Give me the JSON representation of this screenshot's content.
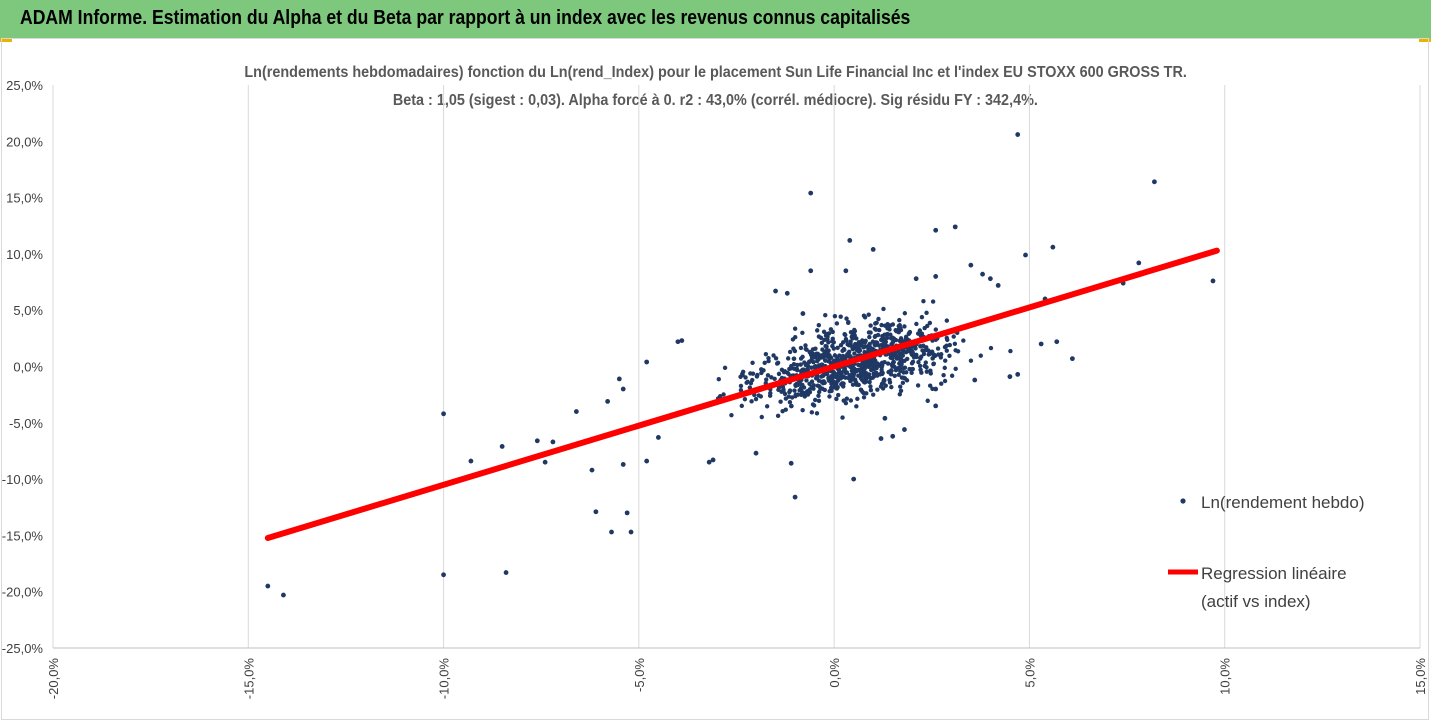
{
  "banner": {
    "title": "ADAM Informe. Estimation du Alpha et du Beta par rapport à un index avec les revenus connus capitalisés",
    "background": "#7dc87d",
    "corner_color": "#e8b400"
  },
  "chart_data": {
    "type": "scatter",
    "title": "Ln(rendements hebdomadaires) fonction du Ln(rend_Index) pour le placement Sun Life Financial Inc et l'index EU STOXX 600 GROSS TR.",
    "subtitle": "Beta : 1,05 (sigest : 0,03). Alpha forcé à 0. r2 : 43,0% (corrél. médiocre). Sig résidu FY : 342,4%.",
    "xlabel": "",
    "ylabel": "",
    "xlim": [
      -0.2,
      0.15
    ],
    "ylim": [
      -0.25,
      0.25
    ],
    "x_ticks": [
      -0.2,
      -0.15,
      -0.1,
      -0.05,
      0.0,
      0.05,
      0.1,
      0.15
    ],
    "x_tick_labels": [
      "-20,0%",
      "-15,0%",
      "-10,0%",
      "-5,0%",
      "0,0%",
      "5,0%",
      "10,0%",
      "15,0%"
    ],
    "y_ticks": [
      0.25,
      0.2,
      0.15,
      0.1,
      0.05,
      0.0,
      -0.05,
      -0.1,
      -0.15,
      -0.2,
      -0.25
    ],
    "y_tick_labels": [
      "25,0%",
      "20,0%",
      "15,0%",
      "10,0%",
      "5,0%",
      "0,0%",
      "-5,0%",
      "-10,0%",
      "-15,0%",
      "-20,0%",
      "-25,0%"
    ],
    "grid": "vertical",
    "legend_position": "right",
    "series": [
      {
        "name": "Ln(rendement hebdo)",
        "kind": "scatter",
        "color": "#1f3864",
        "points": [
          [
            -0.145,
            -0.195
          ],
          [
            -0.141,
            -0.203
          ],
          [
            -0.1,
            -0.185
          ],
          [
            -0.084,
            -0.183
          ],
          [
            -0.1,
            -0.042
          ],
          [
            -0.093,
            -0.084
          ],
          [
            -0.085,
            -0.071
          ],
          [
            -0.076,
            -0.066
          ],
          [
            -0.074,
            -0.085
          ],
          [
            -0.072,
            -0.067
          ],
          [
            -0.066,
            -0.04
          ],
          [
            -0.062,
            -0.092
          ],
          [
            -0.061,
            -0.129
          ],
          [
            -0.058,
            -0.031
          ],
          [
            -0.057,
            -0.147
          ],
          [
            -0.055,
            -0.011
          ],
          [
            -0.054,
            -0.02
          ],
          [
            -0.054,
            -0.087
          ],
          [
            -0.053,
            -0.13
          ],
          [
            -0.052,
            -0.147
          ],
          [
            -0.048,
            0.004
          ],
          [
            -0.048,
            -0.084
          ],
          [
            -0.045,
            -0.063
          ],
          [
            -0.04,
            0.022
          ],
          [
            -0.039,
            0.023
          ],
          [
            -0.032,
            -0.085
          ],
          [
            -0.031,
            -0.083
          ],
          [
            -0.02,
            -0.077
          ],
          [
            -0.015,
            0.067
          ],
          [
            -0.012,
            0.065
          ],
          [
            -0.008,
            0.047
          ],
          [
            -0.006,
            0.154
          ],
          [
            -0.006,
            0.085
          ],
          [
            -0.011,
            -0.086
          ],
          [
            -0.01,
            -0.116
          ],
          [
            0.004,
            0.112
          ],
          [
            0.003,
            0.085
          ],
          [
            0.01,
            0.104
          ],
          [
            0.005,
            -0.1
          ],
          [
            0.026,
            0.121
          ],
          [
            0.031,
            0.124
          ],
          [
            0.021,
            0.078
          ],
          [
            0.026,
            0.08
          ],
          [
            0.035,
            0.09
          ],
          [
            0.038,
            0.082
          ],
          [
            0.04,
            0.078
          ],
          [
            0.042,
            0.072
          ],
          [
            0.047,
            0.206
          ],
          [
            0.049,
            0.099
          ],
          [
            0.056,
            0.106
          ],
          [
            0.054,
            0.06
          ],
          [
            0.057,
            0.022
          ],
          [
            0.061,
            0.007
          ],
          [
            0.047,
            -0.007
          ],
          [
            0.045,
            -0.009
          ],
          [
            0.053,
            0.02
          ],
          [
            0.074,
            0.074
          ],
          [
            0.078,
            0.092
          ],
          [
            0.082,
            0.164
          ],
          [
            0.097,
            0.076
          ],
          [
            0.036,
            -0.012
          ],
          [
            0.026,
            -0.02
          ],
          [
            0.026,
            -0.035
          ],
          [
            0.013,
            -0.046
          ],
          [
            0.015,
            -0.062
          ],
          [
            0.012,
            -0.064
          ],
          [
            0.018,
            -0.056
          ]
        ]
      },
      {
        "name": "Regression linéaire (actif vs index)",
        "kind": "line",
        "color": "#ff0000",
        "points": [
          [
            -0.145,
            -0.1523
          ],
          [
            0.098,
            0.1029
          ]
        ]
      }
    ]
  },
  "legend": {
    "scatter_label": "Ln(rendement hebdo)",
    "line_label_1": "Regression linéaire",
    "line_label_2": "(actif vs index)"
  }
}
